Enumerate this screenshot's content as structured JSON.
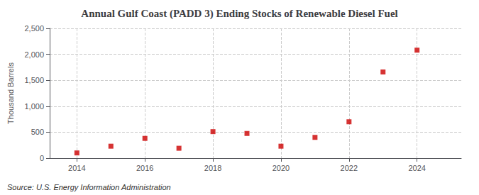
{
  "chart_data": {
    "type": "scatter",
    "title": "Annual Gulf Coast (PADD 3) Ending Stocks of Renewable Diesel Fuel",
    "ylabel": "Thousand Barrels",
    "annotations": [
      "Source: U.S. Energy Information Administration"
    ],
    "x": [
      2014,
      2015,
      2016,
      2017,
      2018,
      2019,
      2020,
      2021,
      2022,
      2023,
      2024
    ],
    "values": [
      100,
      230,
      380,
      190,
      510,
      475,
      230,
      400,
      700,
      1660,
      2080
    ],
    "color": "#cc0000",
    "marker": "square",
    "xlim": [
      2013.2,
      2025.3
    ],
    "xticks": [
      2014,
      2016,
      2018,
      2020,
      2022,
      2024
    ],
    "ylim": [
      0,
      2500
    ],
    "yticks": [
      0,
      500,
      {
        "value": 1000,
        "label": "1,000"
      },
      {
        "value": 1500,
        "label": "1,500"
      },
      {
        "value": 2000,
        "label": "2,000"
      },
      {
        "value": 2500,
        "label": "2,500"
      }
    ],
    "grid": true
  }
}
